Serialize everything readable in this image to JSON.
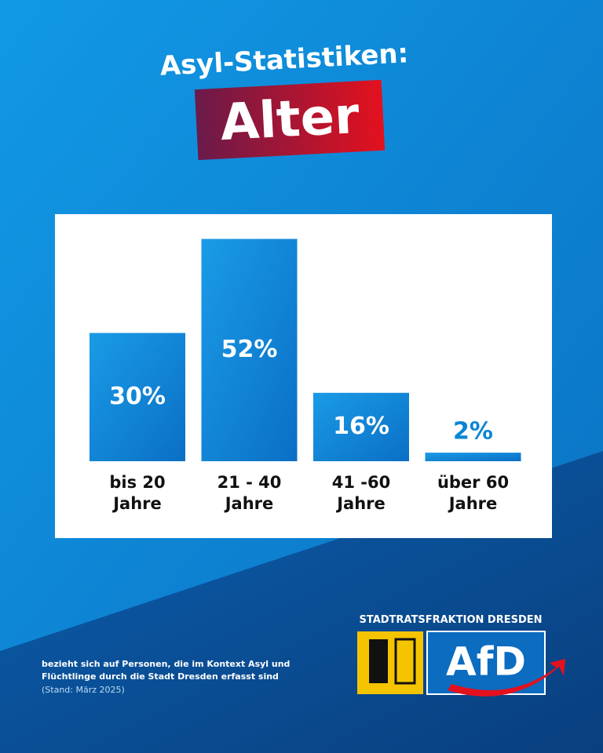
{
  "chart_data": {
    "type": "bar",
    "title": "Asyl-Statistiken:",
    "subtitle": "Alter",
    "categories": [
      "bis 20 Jahre",
      "21 - 40 Jahre",
      "41 -60 Jahre",
      "über 60 Jahre"
    ],
    "values": [
      30,
      52,
      16,
      2
    ],
    "value_labels": [
      "30%",
      "52%",
      "16%",
      "2%"
    ],
    "color": "#0a85d6",
    "footnote": [
      "bezieht sich auf Personen, die im Kontext Asyl und",
      "Flüchtlinge durch die Stadt Dresden erfasst sind"
    ],
    "source": "(Stand: März 2025)"
  },
  "logo": {
    "org": "STADTRATSFRAKTION DRESDEN",
    "party": "AfD"
  }
}
